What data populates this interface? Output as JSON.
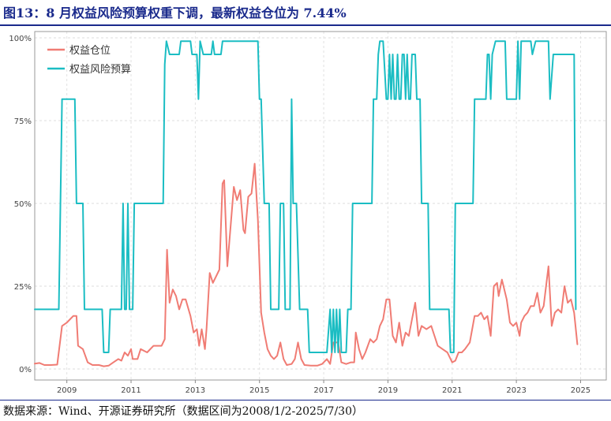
{
  "figure": {
    "title": "图13：8 月权益风险预算权重下调，最新权益仓位为 7.44%",
    "source": "数据来源：Wind、开源证券研究所（数据区间为2008/1/2-2025/7/30）"
  },
  "colors": {
    "title": "#1a2a8c",
    "series_equity_position": "#f07c74",
    "series_risk_budget": "#1bbdc3"
  },
  "chart_data": {
    "type": "line",
    "title": "",
    "xlabel": "",
    "ylabel": "",
    "xlim": [
      2008.0,
      2025.8
    ],
    "ylim": [
      0,
      100
    ],
    "x_ticks": [
      2009,
      2011,
      2013,
      2015,
      2017,
      2019,
      2021,
      2023,
      2025
    ],
    "x_tick_labels": [
      "2009",
      "2011",
      "2013",
      "2015",
      "2017",
      "2019",
      "2021",
      "2023",
      "2025"
    ],
    "y_ticks": [
      0,
      25,
      50,
      75,
      100
    ],
    "y_tick_labels": [
      "0%",
      "25%",
      "50%",
      "75%",
      "100%"
    ],
    "grid": true,
    "legend_position": "top-left",
    "series": [
      {
        "name": "权益仓位",
        "color": "#f07c74",
        "points": [
          [
            2008.0,
            1.6
          ],
          [
            2008.15,
            1.8
          ],
          [
            2008.3,
            1.2
          ],
          [
            2008.5,
            1.2
          ],
          [
            2008.7,
            1.3
          ],
          [
            2008.85,
            13
          ],
          [
            2009.0,
            14
          ],
          [
            2009.1,
            15
          ],
          [
            2009.2,
            16
          ],
          [
            2009.3,
            16
          ],
          [
            2009.35,
            7
          ],
          [
            2009.5,
            6
          ],
          [
            2009.65,
            2
          ],
          [
            2009.8,
            1.2
          ],
          [
            2010.0,
            1.2
          ],
          [
            2010.15,
            0.8
          ],
          [
            2010.3,
            1
          ],
          [
            2010.45,
            2
          ],
          [
            2010.6,
            3
          ],
          [
            2010.7,
            2.5
          ],
          [
            2010.8,
            5
          ],
          [
            2010.9,
            4
          ],
          [
            2011.0,
            6
          ],
          [
            2011.05,
            3
          ],
          [
            2011.2,
            3
          ],
          [
            2011.3,
            6
          ],
          [
            2011.5,
            5
          ],
          [
            2011.7,
            7
          ],
          [
            2011.95,
            7
          ],
          [
            2012.05,
            9
          ],
          [
            2012.12,
            36
          ],
          [
            2012.2,
            20
          ],
          [
            2012.3,
            24
          ],
          [
            2012.4,
            22
          ],
          [
            2012.5,
            18
          ],
          [
            2012.6,
            21
          ],
          [
            2012.7,
            21
          ],
          [
            2012.85,
            16
          ],
          [
            2012.95,
            11
          ],
          [
            2013.05,
            12
          ],
          [
            2013.12,
            7
          ],
          [
            2013.2,
            12
          ],
          [
            2013.3,
            6
          ],
          [
            2013.35,
            12
          ],
          [
            2013.45,
            29
          ],
          [
            2013.55,
            26
          ],
          [
            2013.65,
            28
          ],
          [
            2013.75,
            30
          ],
          [
            2013.85,
            56
          ],
          [
            2013.9,
            57
          ],
          [
            2014.0,
            31
          ],
          [
            2014.1,
            43
          ],
          [
            2014.2,
            55
          ],
          [
            2014.3,
            51
          ],
          [
            2014.4,
            54
          ],
          [
            2014.5,
            42
          ],
          [
            2014.55,
            41
          ],
          [
            2014.65,
            52
          ],
          [
            2014.75,
            53
          ],
          [
            2014.85,
            62
          ],
          [
            2014.95,
            45
          ],
          [
            2015.05,
            17
          ],
          [
            2015.15,
            11
          ],
          [
            2015.25,
            6
          ],
          [
            2015.35,
            4
          ],
          [
            2015.45,
            3
          ],
          [
            2015.55,
            4
          ],
          [
            2015.65,
            8
          ],
          [
            2015.75,
            3
          ],
          [
            2015.85,
            1.2
          ],
          [
            2016.0,
            1.5
          ],
          [
            2016.1,
            3
          ],
          [
            2016.2,
            8
          ],
          [
            2016.3,
            3
          ],
          [
            2016.4,
            1.2
          ],
          [
            2016.6,
            1
          ],
          [
            2016.8,
            1
          ],
          [
            2016.95,
            1.5
          ],
          [
            2017.1,
            3
          ],
          [
            2017.2,
            1.5
          ],
          [
            2017.3,
            8
          ],
          [
            2017.45,
            8
          ],
          [
            2017.55,
            2
          ],
          [
            2017.7,
            1.5
          ],
          [
            2017.85,
            2
          ],
          [
            2017.95,
            2
          ],
          [
            2018.0,
            11
          ],
          [
            2018.1,
            6
          ],
          [
            2018.2,
            3
          ],
          [
            2018.3,
            5
          ],
          [
            2018.45,
            9
          ],
          [
            2018.55,
            8
          ],
          [
            2018.65,
            9
          ],
          [
            2018.75,
            13
          ],
          [
            2018.85,
            15
          ],
          [
            2018.95,
            21
          ],
          [
            2019.05,
            21
          ],
          [
            2019.15,
            10
          ],
          [
            2019.25,
            8
          ],
          [
            2019.35,
            14
          ],
          [
            2019.45,
            7
          ],
          [
            2019.55,
            11
          ],
          [
            2019.65,
            10
          ],
          [
            2019.75,
            15
          ],
          [
            2019.85,
            20
          ],
          [
            2019.95,
            10
          ],
          [
            2020.05,
            13
          ],
          [
            2020.2,
            12
          ],
          [
            2020.35,
            13
          ],
          [
            2020.45,
            10
          ],
          [
            2020.55,
            7
          ],
          [
            2020.7,
            6
          ],
          [
            2020.85,
            5
          ],
          [
            2021.0,
            2
          ],
          [
            2021.1,
            2.5
          ],
          [
            2021.2,
            5
          ],
          [
            2021.3,
            5
          ],
          [
            2021.4,
            6
          ],
          [
            2021.55,
            8
          ],
          [
            2021.7,
            16
          ],
          [
            2021.8,
            16
          ],
          [
            2021.9,
            17
          ],
          [
            2022.0,
            15
          ],
          [
            2022.1,
            16
          ],
          [
            2022.2,
            10
          ],
          [
            2022.3,
            25
          ],
          [
            2022.4,
            26
          ],
          [
            2022.45,
            22
          ],
          [
            2022.55,
            27
          ],
          [
            2022.7,
            21
          ],
          [
            2022.8,
            14
          ],
          [
            2022.9,
            13
          ],
          [
            2023.0,
            14
          ],
          [
            2023.1,
            10
          ],
          [
            2023.15,
            14
          ],
          [
            2023.25,
            16
          ],
          [
            2023.35,
            17
          ],
          [
            2023.45,
            19
          ],
          [
            2023.55,
            19
          ],
          [
            2023.65,
            23
          ],
          [
            2023.75,
            17
          ],
          [
            2023.85,
            19
          ],
          [
            2024.0,
            31
          ],
          [
            2024.1,
            13
          ],
          [
            2024.2,
            17
          ],
          [
            2024.3,
            18
          ],
          [
            2024.4,
            17
          ],
          [
            2024.5,
            25
          ],
          [
            2024.6,
            20
          ],
          [
            2024.7,
            21
          ],
          [
            2024.8,
            17
          ],
          [
            2024.9,
            7.44
          ]
        ]
      },
      {
        "name": "权益风险预算",
        "color": "#1bbdc3",
        "points": [
          [
            2008.0,
            18
          ],
          [
            2008.75,
            18
          ],
          [
            2008.85,
            81.5
          ],
          [
            2009.25,
            81.5
          ],
          [
            2009.3,
            50
          ],
          [
            2009.5,
            50
          ],
          [
            2009.55,
            18
          ],
          [
            2010.1,
            18
          ],
          [
            2010.15,
            5
          ],
          [
            2010.3,
            5
          ],
          [
            2010.35,
            18
          ],
          [
            2010.7,
            18
          ],
          [
            2010.75,
            50
          ],
          [
            2010.8,
            18
          ],
          [
            2010.85,
            18
          ],
          [
            2010.9,
            50
          ],
          [
            2010.95,
            18
          ],
          [
            2011.05,
            18
          ],
          [
            2011.1,
            50
          ],
          [
            2012.0,
            50
          ],
          [
            2012.05,
            92
          ],
          [
            2012.1,
            99
          ],
          [
            2012.2,
            95
          ],
          [
            2012.5,
            95
          ],
          [
            2012.55,
            99
          ],
          [
            2012.85,
            99
          ],
          [
            2012.9,
            95
          ],
          [
            2013.05,
            95
          ],
          [
            2013.1,
            81.5
          ],
          [
            2013.15,
            99
          ],
          [
            2013.25,
            95
          ],
          [
            2013.5,
            95
          ],
          [
            2013.55,
            99
          ],
          [
            2013.6,
            95
          ],
          [
            2013.8,
            95
          ],
          [
            2013.85,
            99
          ],
          [
            2014.6,
            99
          ],
          [
            2014.95,
            99
          ],
          [
            2015.0,
            81.5
          ],
          [
            2015.05,
            81.5
          ],
          [
            2015.15,
            50
          ],
          [
            2015.3,
            50
          ],
          [
            2015.35,
            18
          ],
          [
            2015.6,
            18
          ],
          [
            2015.65,
            50
          ],
          [
            2015.75,
            50
          ],
          [
            2015.8,
            18
          ],
          [
            2015.95,
            18
          ],
          [
            2016.0,
            81.5
          ],
          [
            2016.05,
            50
          ],
          [
            2016.15,
            50
          ],
          [
            2016.25,
            18
          ],
          [
            2016.5,
            18
          ],
          [
            2016.55,
            5
          ],
          [
            2017.1,
            5
          ],
          [
            2017.2,
            18
          ],
          [
            2017.25,
            5
          ],
          [
            2017.3,
            18
          ],
          [
            2017.35,
            5
          ],
          [
            2017.4,
            18
          ],
          [
            2017.45,
            5
          ],
          [
            2017.5,
            18
          ],
          [
            2017.55,
            5
          ],
          [
            2017.7,
            5
          ],
          [
            2017.75,
            18
          ],
          [
            2017.85,
            18
          ],
          [
            2017.9,
            50
          ],
          [
            2018.5,
            50
          ],
          [
            2018.55,
            81.5
          ],
          [
            2018.65,
            81.5
          ],
          [
            2018.7,
            95
          ],
          [
            2018.75,
            99
          ],
          [
            2018.85,
            99
          ],
          [
            2018.95,
            81.5
          ],
          [
            2019.0,
            81.5
          ],
          [
            2019.05,
            95
          ],
          [
            2019.1,
            81.5
          ],
          [
            2019.15,
            95
          ],
          [
            2019.2,
            81.5
          ],
          [
            2019.25,
            81.5
          ],
          [
            2019.3,
            95
          ],
          [
            2019.35,
            81.5
          ],
          [
            2019.4,
            81.5
          ],
          [
            2019.45,
            95
          ],
          [
            2019.5,
            95
          ],
          [
            2019.55,
            81.5
          ],
          [
            2019.6,
            95
          ],
          [
            2019.65,
            81.5
          ],
          [
            2019.7,
            81.5
          ],
          [
            2019.75,
            95
          ],
          [
            2019.85,
            95
          ],
          [
            2019.9,
            81.5
          ],
          [
            2020.0,
            81.5
          ],
          [
            2020.05,
            50
          ],
          [
            2020.25,
            50
          ],
          [
            2020.3,
            18
          ],
          [
            2020.9,
            18
          ],
          [
            2020.95,
            5
          ],
          [
            2021.05,
            5
          ],
          [
            2021.1,
            50
          ],
          [
            2021.65,
            50
          ],
          [
            2021.7,
            81.5
          ],
          [
            2022.05,
            81.5
          ],
          [
            2022.1,
            95
          ],
          [
            2022.15,
            95
          ],
          [
            2022.2,
            81.5
          ],
          [
            2022.25,
            95
          ],
          [
            2022.35,
            99
          ],
          [
            2022.65,
            99
          ],
          [
            2022.7,
            81.5
          ],
          [
            2023.0,
            81.5
          ],
          [
            2023.05,
            99
          ],
          [
            2023.1,
            81.5
          ],
          [
            2023.15,
            99
          ],
          [
            2023.45,
            99
          ],
          [
            2023.5,
            95
          ],
          [
            2023.6,
            99
          ],
          [
            2024.0,
            99
          ],
          [
            2024.05,
            81.5
          ],
          [
            2024.15,
            95
          ],
          [
            2024.6,
            95
          ],
          [
            2024.65,
            95
          ],
          [
            2024.7,
            95
          ],
          [
            2024.8,
            95
          ],
          [
            2024.85,
            18
          ]
        ]
      }
    ]
  }
}
